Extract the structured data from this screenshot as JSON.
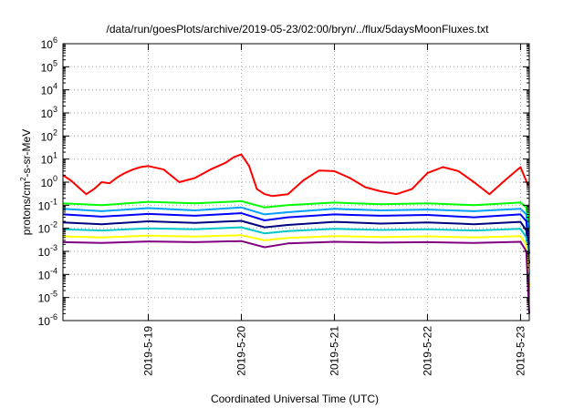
{
  "chart_data": {
    "type": "line",
    "title": "/data/run/goesPlots/archive/2019-05-23/02:00/bryn/../flux/5daysMoonFluxes.txt",
    "xlabel": "Coordinated Universal Time (UTC)",
    "ylabel": {
      "base": "protons/cm",
      "sup": "2",
      "rest": "-s-sr-MeV"
    },
    "y_scale": "log",
    "ylim": [
      1e-06,
      1000000.0
    ],
    "y_ticks": [
      {
        "value": 1e-06,
        "base": "10",
        "exp": "-6"
      },
      {
        "value": 1e-05,
        "base": "10",
        "exp": "-5"
      },
      {
        "value": 0.0001,
        "base": "10",
        "exp": "-4"
      },
      {
        "value": 0.001,
        "base": "10",
        "exp": "-3"
      },
      {
        "value": 0.01,
        "base": "10",
        "exp": "-2"
      },
      {
        "value": 0.1,
        "base": "10",
        "exp": "-1"
      },
      {
        "value": 1,
        "base": "10",
        "exp": "0"
      },
      {
        "value": 10,
        "base": "10",
        "exp": "1"
      },
      {
        "value": 100,
        "base": "10",
        "exp": "2"
      },
      {
        "value": 1000,
        "base": "10",
        "exp": "3"
      },
      {
        "value": 10000,
        "base": "10",
        "exp": "4"
      },
      {
        "value": 100000,
        "base": "10",
        "exp": "5"
      },
      {
        "value": 1000000,
        "base": "10",
        "exp": "6"
      }
    ],
    "xlim": [
      "2019-05-18 02:00",
      "2019-05-23 02:15"
    ],
    "x_ticks": [
      "2019-5-19",
      "2019-5-20",
      "2019-5-21",
      "2019-5-22",
      "2019-5-23"
    ],
    "grid": true,
    "legend": "none",
    "series": [
      {
        "color": "#ff0000",
        "x": [
          "2019-05-18 02:00",
          "2019-05-18 04:00",
          "2019-05-18 06:00",
          "2019-05-18 08:00",
          "2019-05-18 10:00",
          "2019-05-18 12:00",
          "2019-05-18 14:00",
          "2019-05-18 16:00",
          "2019-05-18 18:00",
          "2019-05-18 20:00",
          "2019-05-18 22:00",
          "2019-05-19 00:00",
          "2019-05-19 04:00",
          "2019-05-19 08:00",
          "2019-05-19 12:00",
          "2019-05-19 16:00",
          "2019-05-19 20:00",
          "2019-05-19 22:00",
          "2019-05-20 00:00",
          "2019-05-20 02:00",
          "2019-05-20 04:00",
          "2019-05-20 06:00",
          "2019-05-20 08:00",
          "2019-05-20 12:00",
          "2019-05-20 16:00",
          "2019-05-20 20:00",
          "2019-05-21 00:00",
          "2019-05-21 04:00",
          "2019-05-21 08:00",
          "2019-05-21 12:00",
          "2019-05-21 16:00",
          "2019-05-21 20:00",
          "2019-05-22 00:00",
          "2019-05-22 04:00",
          "2019-05-22 08:00",
          "2019-05-22 12:00",
          "2019-05-22 16:00",
          "2019-05-22 20:00",
          "2019-05-23 00:00",
          "2019-05-23 02:00"
        ],
        "y": [
          2.0,
          1.2,
          0.6,
          0.3,
          0.5,
          1.0,
          0.9,
          1.6,
          2.5,
          3.5,
          4.5,
          5.0,
          3.5,
          1.0,
          1.5,
          3.5,
          7.0,
          12.0,
          16.0,
          5.0,
          0.5,
          0.3,
          0.25,
          0.3,
          1.2,
          3.2,
          3.0,
          1.5,
          0.6,
          0.4,
          0.3,
          0.5,
          2.5,
          4.5,
          3.0,
          1.0,
          0.3,
          1.2,
          4.5,
          0.7
        ]
      },
      {
        "color": "#00ff00",
        "x": [
          "2019-05-18 02:00",
          "2019-05-18 12:00",
          "2019-05-19 00:00",
          "2019-05-19 12:00",
          "2019-05-20 00:00",
          "2019-05-20 06:00",
          "2019-05-20 12:00",
          "2019-05-21 00:00",
          "2019-05-21 12:00",
          "2019-05-22 00:00",
          "2019-05-22 12:00",
          "2019-05-23 00:00",
          "2019-05-23 01:30",
          "2019-05-23 02:15"
        ],
        "y": [
          0.12,
          0.1,
          0.14,
          0.12,
          0.15,
          0.08,
          0.1,
          0.13,
          0.11,
          0.12,
          0.1,
          0.13,
          0.08,
          0.01
        ]
      },
      {
        "color": "#00a0ff",
        "x": [
          "2019-05-18 02:00",
          "2019-05-18 12:00",
          "2019-05-19 00:00",
          "2019-05-19 12:00",
          "2019-05-20 00:00",
          "2019-05-20 06:00",
          "2019-05-20 12:00",
          "2019-05-21 00:00",
          "2019-05-21 12:00",
          "2019-05-22 00:00",
          "2019-05-22 12:00",
          "2019-05-23 00:00",
          "2019-05-23 01:30",
          "2019-05-23 02:15"
        ],
        "y": [
          0.07,
          0.055,
          0.075,
          0.06,
          0.08,
          0.04,
          0.05,
          0.07,
          0.06,
          0.065,
          0.055,
          0.07,
          0.04,
          0.002
        ]
      },
      {
        "color": "#0000ff",
        "x": [
          "2019-05-18 02:00",
          "2019-05-18 12:00",
          "2019-05-19 00:00",
          "2019-05-19 12:00",
          "2019-05-20 00:00",
          "2019-05-20 06:00",
          "2019-05-20 12:00",
          "2019-05-21 00:00",
          "2019-05-21 12:00",
          "2019-05-22 00:00",
          "2019-05-22 12:00",
          "2019-05-23 00:00",
          "2019-05-23 01:30",
          "2019-05-23 02:15"
        ],
        "y": [
          0.04,
          0.032,
          0.042,
          0.035,
          0.045,
          0.022,
          0.03,
          0.04,
          0.035,
          0.038,
          0.03,
          0.04,
          0.02,
          0.0008
        ]
      },
      {
        "color": "#000080",
        "x": [
          "2019-05-18 02:00",
          "2019-05-18 12:00",
          "2019-05-19 00:00",
          "2019-05-19 12:00",
          "2019-05-20 00:00",
          "2019-05-20 06:00",
          "2019-05-20 12:00",
          "2019-05-21 00:00",
          "2019-05-21 12:00",
          "2019-05-22 00:00",
          "2019-05-22 12:00",
          "2019-05-23 00:00",
          "2019-05-23 01:30",
          "2019-05-23 02:15"
        ],
        "y": [
          0.018,
          0.015,
          0.02,
          0.017,
          0.021,
          0.011,
          0.014,
          0.019,
          0.016,
          0.018,
          0.015,
          0.019,
          0.008,
          0.0003
        ]
      },
      {
        "color": "#00c8c8",
        "x": [
          "2019-05-18 02:00",
          "2019-05-18 12:00",
          "2019-05-19 00:00",
          "2019-05-19 12:00",
          "2019-05-20 00:00",
          "2019-05-20 06:00",
          "2019-05-20 12:00",
          "2019-05-21 00:00",
          "2019-05-21 12:00",
          "2019-05-22 00:00",
          "2019-05-22 12:00",
          "2019-05-23 00:00",
          "2019-05-23 01:30",
          "2019-05-23 02:15"
        ],
        "y": [
          0.009,
          0.008,
          0.01,
          0.009,
          0.011,
          0.006,
          0.0075,
          0.0095,
          0.0085,
          0.009,
          0.008,
          0.0095,
          0.004,
          0.0001
        ]
      },
      {
        "color": "#ffff00",
        "x": [
          "2019-05-18 02:00",
          "2019-05-18 12:00",
          "2019-05-19 00:00",
          "2019-05-19 12:00",
          "2019-05-20 00:00",
          "2019-05-20 06:00",
          "2019-05-20 12:00",
          "2019-05-21 00:00",
          "2019-05-21 12:00",
          "2019-05-22 00:00",
          "2019-05-22 12:00",
          "2019-05-23 00:00",
          "2019-05-23 01:30",
          "2019-05-23 02:15"
        ],
        "y": [
          0.0045,
          0.004,
          0.0048,
          0.0044,
          0.005,
          0.003,
          0.0038,
          0.0046,
          0.0042,
          0.0045,
          0.004,
          0.0046,
          0.002,
          3e-05
        ]
      },
      {
        "color": "#800080",
        "x": [
          "2019-05-18 02:00",
          "2019-05-18 12:00",
          "2019-05-19 00:00",
          "2019-05-19 12:00",
          "2019-05-20 00:00",
          "2019-05-20 06:00",
          "2019-05-20 12:00",
          "2019-05-21 00:00",
          "2019-05-21 12:00",
          "2019-05-22 00:00",
          "2019-05-22 12:00",
          "2019-05-23 00:00",
          "2019-05-23 01:30",
          "2019-05-23 02:15"
        ],
        "y": [
          0.0025,
          0.0023,
          0.0027,
          0.0025,
          0.0028,
          0.0015,
          0.0022,
          0.0026,
          0.0024,
          0.0025,
          0.0023,
          0.0026,
          0.001,
          2e-06
        ]
      }
    ]
  }
}
